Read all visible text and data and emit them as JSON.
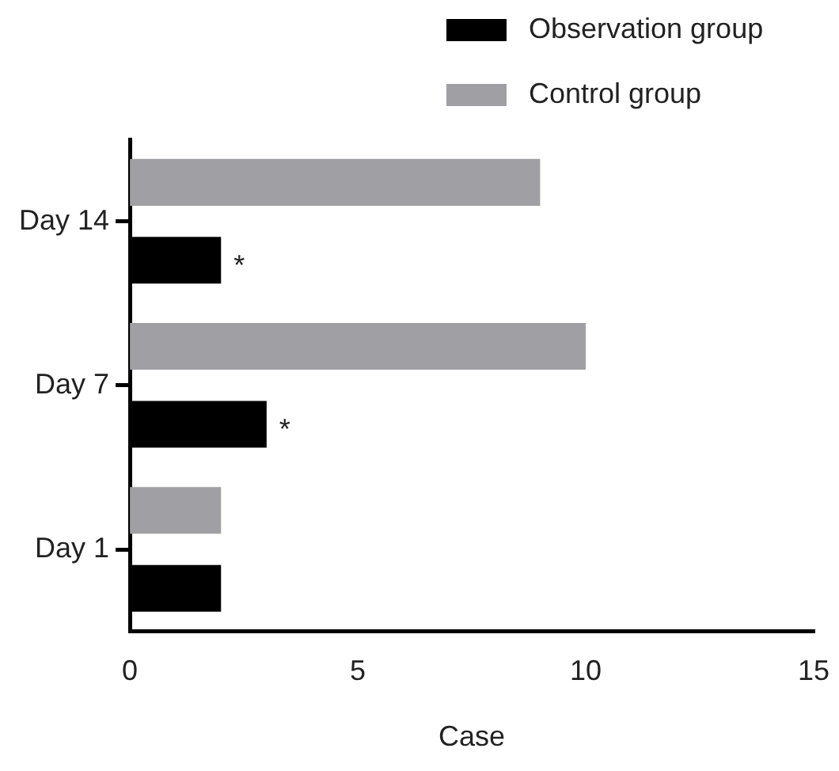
{
  "chart_data": {
    "type": "bar",
    "orientation": "horizontal",
    "xlabel": "Case",
    "categories": [
      "Day 14",
      "Day 7",
      "Day 1"
    ],
    "series": [
      {
        "name": "Control group",
        "color": "#a0a0a4",
        "values": [
          9,
          10,
          2
        ]
      },
      {
        "name": "Observation group",
        "color": "#000000",
        "values": [
          2,
          3,
          2
        ]
      }
    ],
    "xlim": [
      0,
      15
    ],
    "xticks": [
      0,
      5,
      10,
      15
    ],
    "grid": false,
    "legend": "top right",
    "annotations": [
      "*",
      "*"
    ]
  }
}
